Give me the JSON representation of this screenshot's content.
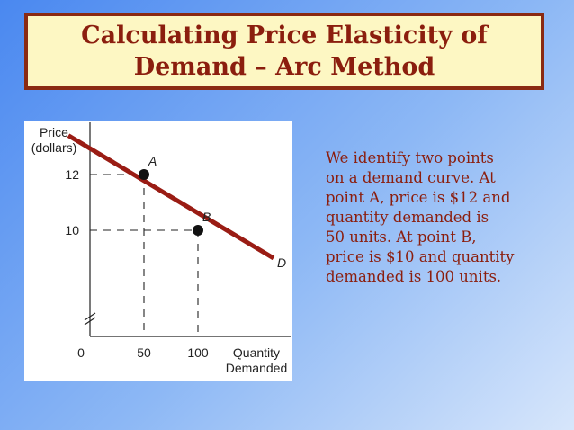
{
  "slide": {
    "title_lines": [
      "Calculating Price Elasticity of",
      "Demand – Arc Method"
    ],
    "description_lines": [
      "We identify two points",
      "on a demand curve. At",
      "point A, price is $12 and",
      "quantity demanded is",
      "50 units. At point B,",
      "price is $10 and quantity",
      "demanded is 100 units."
    ],
    "colors": {
      "title_text": "#8b1e0e",
      "title_border": "#8a2a12",
      "title_background": "#fdf7c3",
      "curve": "#9a1c14",
      "body_text": "#8b1e0e"
    }
  },
  "chart_data": {
    "type": "line",
    "ylabel_lines": [
      "Price",
      "(dollars)"
    ],
    "xlabel_lines": [
      "Quantity",
      "Demanded"
    ],
    "x_ticks": [
      {
        "value": 0,
        "label": "0"
      },
      {
        "value": 50,
        "label": "50"
      },
      {
        "value": 100,
        "label": "100"
      }
    ],
    "y_ticks": [
      {
        "value": 10,
        "label": "10"
      },
      {
        "value": 12,
        "label": "12"
      }
    ],
    "axis_break": "y",
    "series": [
      {
        "name": "D",
        "x": [
          -20,
          170
        ],
        "y": [
          13.4,
          9.0
        ]
      }
    ],
    "points": [
      {
        "label": "A",
        "x": 50,
        "y": 12
      },
      {
        "label": "B",
        "x": 100,
        "y": 10
      }
    ]
  }
}
